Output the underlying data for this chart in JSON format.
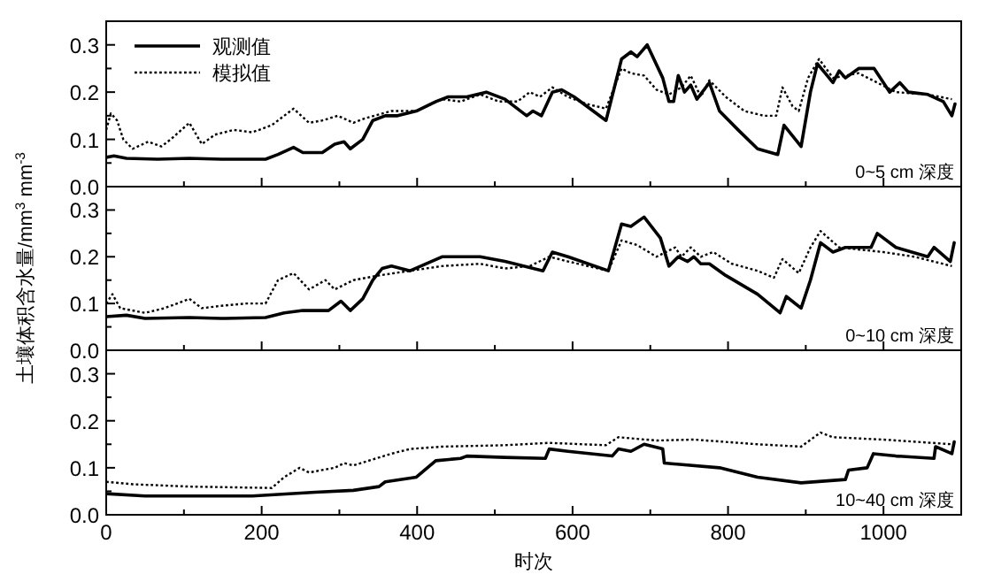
{
  "chart_data": [
    {
      "type": "line",
      "xlim": [
        0,
        1100
      ],
      "ylim": [
        0,
        0.35
      ],
      "tick_labels": "y",
      "legend": "top left",
      "xticks": [
        0,
        {
          "value": 100,
          "label": null
        },
        200,
        {
          "value": 300,
          "label": null
        },
        400,
        {
          "value": 500,
          "label": null
        },
        600,
        {
          "value": 700,
          "label": null
        },
        800,
        {
          "value": 900,
          "label": null
        },
        1000
      ],
      "yticks": [
        {
          "value": 0,
          "label": "0.0"
        },
        {
          "value": 0.05,
          "label": null
        },
        0.1,
        {
          "value": 0.15,
          "label": null
        },
        0.2,
        {
          "value": 0.25,
          "label": null
        },
        0.3
      ],
      "annotations": [
        "0~5 cm 深度"
      ],
      "series": [
        {
          "name": "观测值",
          "color": "#000000",
          "line_style": "solid",
          "x": [
            0,
            10,
            26,
            66,
            107,
            148,
            205,
            221,
            241,
            253,
            278,
            294,
            306,
            314,
            330,
            343,
            359,
            375,
            399,
            424,
            440,
            464,
            489,
            513,
            541,
            549,
            560,
            574,
            586,
            602,
            643,
            663,
            675,
            683,
            696,
            716,
            724,
            730,
            736,
            744,
            752,
            760,
            776,
            789,
            813,
            838,
            864,
            872,
            894,
            906,
            915,
            935,
            943,
            951,
            968,
            988,
            1008,
            1021,
            1032,
            1057,
            1077,
            1088,
            1092
          ],
          "values": [
            0.062,
            0.065,
            0.06,
            0.058,
            0.06,
            0.058,
            0.058,
            0.068,
            0.083,
            0.072,
            0.072,
            0.09,
            0.095,
            0.08,
            0.1,
            0.14,
            0.15,
            0.15,
            0.16,
            0.18,
            0.19,
            0.19,
            0.2,
            0.185,
            0.15,
            0.16,
            0.15,
            0.2,
            0.205,
            0.19,
            0.14,
            0.27,
            0.285,
            0.275,
            0.3,
            0.23,
            0.18,
            0.18,
            0.235,
            0.2,
            0.215,
            0.185,
            0.22,
            0.16,
            0.12,
            0.08,
            0.068,
            0.13,
            0.085,
            0.2,
            0.26,
            0.22,
            0.245,
            0.23,
            0.25,
            0.25,
            0.2,
            0.22,
            0.2,
            0.195,
            0.18,
            0.15,
            0.175
          ]
        },
        {
          "name": "模拟值",
          "color": "#000000",
          "line_style": "dotted",
          "x": [
            0,
            6,
            14,
            22,
            34,
            54,
            71,
            83,
            107,
            123,
            140,
            164,
            188,
            213,
            241,
            261,
            278,
            298,
            318,
            334,
            367,
            399,
            432,
            456,
            481,
            505,
            529,
            545,
            558,
            574,
            594,
            618,
            643,
            663,
            675,
            692,
            708,
            724,
            740,
            752,
            765,
            776,
            797,
            821,
            846,
            862,
            870,
            883,
            891,
            903,
            917,
            935,
            968,
            992,
            1016,
            1057,
            1088
          ],
          "values": [
            0.12,
            0.155,
            0.14,
            0.1,
            0.08,
            0.095,
            0.085,
            0.1,
            0.135,
            0.09,
            0.11,
            0.12,
            0.115,
            0.13,
            0.165,
            0.135,
            0.14,
            0.15,
            0.135,
            0.145,
            0.16,
            0.16,
            0.185,
            0.18,
            0.195,
            0.18,
            0.18,
            0.2,
            0.19,
            0.21,
            0.19,
            0.175,
            0.165,
            0.25,
            0.24,
            0.235,
            0.205,
            0.195,
            0.21,
            0.235,
            0.19,
            0.225,
            0.19,
            0.16,
            0.15,
            0.15,
            0.21,
            0.17,
            0.16,
            0.23,
            0.27,
            0.23,
            0.24,
            0.22,
            0.2,
            0.195,
            0.185
          ]
        }
      ]
    },
    {
      "type": "line",
      "xlim": [
        0,
        1100
      ],
      "ylim": [
        0,
        0.35
      ],
      "tick_labels": "y",
      "ylabel": "土壤体积含水量/mm$^{3}$ mm$^{-3}$",
      "xticks": [
        0,
        {
          "value": 100,
          "label": null
        },
        200,
        {
          "value": 300,
          "label": null
        },
        400,
        {
          "value": 500,
          "label": null
        },
        600,
        {
          "value": 700,
          "label": null
        },
        800,
        {
          "value": 900,
          "label": null
        },
        1000
      ],
      "yticks": [
        {
          "value": 0,
          "label": "0.0"
        },
        {
          "value": 0.05,
          "label": null
        },
        0.1,
        {
          "value": 0.15,
          "label": null
        },
        0.2,
        {
          "value": 0.25,
          "label": null
        },
        0.3
      ],
      "annotations": [
        "0~10 cm 深度"
      ],
      "series": [
        {
          "color": "#000000",
          "line_style": "solid",
          "x": [
            0,
            26,
            50,
            107,
            148,
            205,
            229,
            253,
            286,
            302,
            314,
            330,
            343,
            355,
            367,
            391,
            432,
            481,
            513,
            562,
            574,
            594,
            646,
            663,
            675,
            692,
            713,
            724,
            736,
            748,
            756,
            765,
            776,
            797,
            838,
            867,
            875,
            894,
            906,
            919,
            935,
            951,
            984,
            992,
            1016,
            1057,
            1065,
            1086,
            1091
          ],
          "values": [
            0.072,
            0.075,
            0.068,
            0.07,
            0.068,
            0.07,
            0.08,
            0.085,
            0.085,
            0.105,
            0.085,
            0.11,
            0.15,
            0.175,
            0.18,
            0.17,
            0.2,
            0.2,
            0.19,
            0.17,
            0.21,
            0.2,
            0.17,
            0.27,
            0.265,
            0.285,
            0.24,
            0.18,
            0.2,
            0.19,
            0.2,
            0.185,
            0.185,
            0.16,
            0.12,
            0.08,
            0.115,
            0.09,
            0.15,
            0.23,
            0.21,
            0.22,
            0.22,
            0.25,
            0.22,
            0.2,
            0.22,
            0.19,
            0.23
          ]
        },
        {
          "color": "#000000",
          "line_style": "dotted",
          "x": [
            0,
            8,
            18,
            50,
            75,
            107,
            123,
            148,
            180,
            205,
            221,
            241,
            261,
            282,
            294,
            318,
            351,
            391,
            432,
            481,
            513,
            545,
            570,
            594,
            646,
            663,
            683,
            708,
            732,
            740,
            752,
            765,
            781,
            805,
            838,
            859,
            870,
            891,
            906,
            919,
            943,
            1000,
            1040,
            1088
          ],
          "values": [
            0.1,
            0.12,
            0.09,
            0.08,
            0.09,
            0.11,
            0.09,
            0.095,
            0.1,
            0.1,
            0.15,
            0.165,
            0.13,
            0.15,
            0.13,
            0.15,
            0.16,
            0.17,
            0.18,
            0.185,
            0.175,
            0.18,
            0.2,
            0.19,
            0.17,
            0.235,
            0.225,
            0.2,
            0.22,
            0.2,
            0.22,
            0.2,
            0.21,
            0.185,
            0.17,
            0.155,
            0.195,
            0.165,
            0.22,
            0.255,
            0.22,
            0.21,
            0.2,
            0.18
          ]
        }
      ]
    },
    {
      "type": "line",
      "xlim": [
        0,
        1100
      ],
      "ylim": [
        0,
        0.35
      ],
      "xlabel": "时次",
      "xticks": [
        0,
        {
          "value": 100,
          "label": null
        },
        200,
        {
          "value": 300,
          "label": null
        },
        400,
        {
          "value": 500,
          "label": null
        },
        600,
        {
          "value": 700,
          "label": null
        },
        800,
        {
          "value": 900,
          "label": null
        },
        1000
      ],
      "yticks": [
        {
          "value": 0,
          "label": "0.0"
        },
        {
          "value": 0.05,
          "label": null
        },
        0.1,
        {
          "value": 0.15,
          "label": null
        },
        0.2,
        {
          "value": 0.25,
          "label": null
        },
        0.3
      ],
      "annotations": [
        "10~40 cm 深度"
      ],
      "series": [
        {
          "color": "#000000",
          "line_style": "solid",
          "x": [
            0,
            50,
            188,
            269,
            318,
            351,
            359,
            399,
            424,
            456,
            464,
            513,
            565,
            570,
            594,
            651,
            659,
            675,
            692,
            716,
            718,
            789,
            838,
            894,
            951,
            955,
            979,
            987,
            1016,
            1065,
            1067,
            1088,
            1091
          ],
          "values": [
            0.045,
            0.04,
            0.04,
            0.048,
            0.052,
            0.06,
            0.07,
            0.08,
            0.115,
            0.12,
            0.125,
            0.122,
            0.12,
            0.14,
            0.135,
            0.125,
            0.14,
            0.135,
            0.15,
            0.14,
            0.11,
            0.1,
            0.08,
            0.068,
            0.075,
            0.095,
            0.1,
            0.13,
            0.125,
            0.12,
            0.145,
            0.13,
            0.155
          ]
        },
        {
          "color": "#000000",
          "line_style": "dotted",
          "x": [
            0,
            34,
            107,
            213,
            229,
            249,
            261,
            294,
            306,
            318,
            367,
            391,
            432,
            513,
            570,
            643,
            659,
            708,
            756,
            838,
            894,
            919,
            935,
            1000,
            1088
          ],
          "values": [
            0.07,
            0.065,
            0.06,
            0.057,
            0.08,
            0.1,
            0.09,
            0.1,
            0.11,
            0.105,
            0.13,
            0.14,
            0.145,
            0.148,
            0.153,
            0.148,
            0.165,
            0.158,
            0.16,
            0.15,
            0.145,
            0.175,
            0.165,
            0.16,
            0.15
          ]
        }
      ]
    }
  ]
}
